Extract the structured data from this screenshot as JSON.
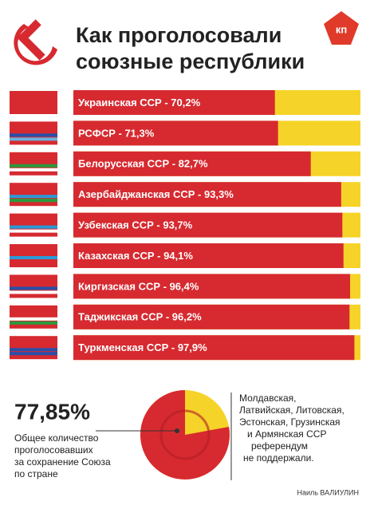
{
  "chart_data": {
    "type": "bar",
    "title_lines": [
      "Как проголосовали",
      "союзные республики"
    ],
    "logo": "кп",
    "values": [
      70.2,
      71.3,
      82.7,
      93.3,
      93.7,
      94.1,
      96.4,
      96.2,
      97.9
    ],
    "value_labels": [
      "Украинская ССР - 70,2%",
      "РСФСР - 71,3%",
      "Белорусская ССР - 82,7%",
      "Азербайджанская ССР - 93,3%",
      "Узбекская ССР - 93,7%",
      "Казахская ССР - 94,1%",
      "Киргизская ССР - 96,4%",
      "Таджикская ССР - 96,2%",
      "Туркменская ССР - 97,9%"
    ],
    "xlim": [
      0,
      100
    ],
    "color": "#d62a30",
    "rest_color": "#f6d328",
    "summary": {
      "type": "pie",
      "value": 77.85,
      "value_label": "77,85%",
      "caption_lines": [
        "Общее количество",
        "проголосовавших",
        "за сохранение Союза",
        "по стране"
      ]
    },
    "note_lines": [
      "Молдавская,",
      "Латвийская, Литовская,",
      "Эстонская, Грузинская",
      "и Армянская ССР",
      "референдум",
      "не поддержали."
    ],
    "credit": "Наиль ВАЛИУЛИН"
  }
}
